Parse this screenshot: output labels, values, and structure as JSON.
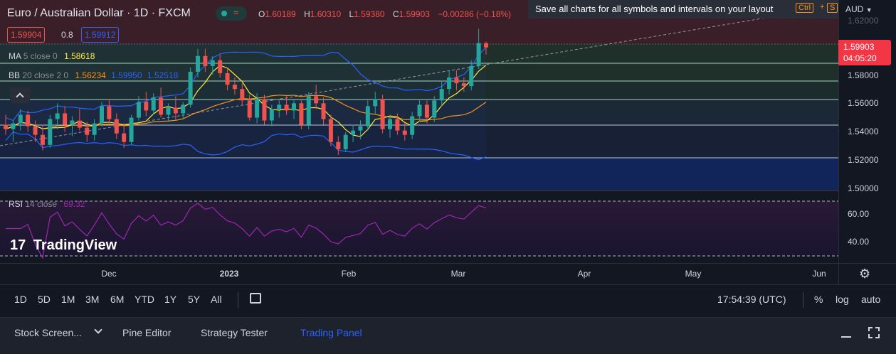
{
  "header": {
    "symbol_title": "Euro / Australian Dollar · 1D · FXCM",
    "ohlc": {
      "o_label": "O",
      "o": "1.60189",
      "h_label": "H",
      "h": "1.60310",
      "l_label": "L",
      "l": "1.59380",
      "c_label": "C",
      "c": "1.59903",
      "change": "−0.00286 (−0.18%)"
    },
    "bid": "1.59904",
    "spread": "0.8",
    "ask": "1.59912",
    "tooltip_text": "Save all charts for all symbols and intervals on your layout",
    "shortcut_ctrl": "Ctrl",
    "shortcut_plus": "+",
    "shortcut_s": "S",
    "currency": "AUD"
  },
  "indicators": {
    "ma": {
      "name": "MA",
      "params": "5 close 0",
      "value": "1.58618"
    },
    "bb": {
      "name": "BB",
      "params": "20 close 2 0",
      "basis": "1.56234",
      "upper": "1.59950",
      "lower": "1.52518"
    },
    "rsi": {
      "name": "RSI",
      "params": "14 close",
      "value": "69.32"
    }
  },
  "price_axis": {
    "ticks": [
      "1.62000",
      "1.58000",
      "1.56000",
      "1.54000",
      "1.52000",
      "1.50000"
    ],
    "current_price": "1.59903",
    "countdown": "04:05:20",
    "rsi_ticks": [
      "60.00",
      "40.00"
    ]
  },
  "time_axis": {
    "labels": [
      {
        "text": "Dec",
        "year": false
      },
      {
        "text": "2023",
        "year": true
      },
      {
        "text": "Feb",
        "year": false
      },
      {
        "text": "Mar",
        "year": false
      },
      {
        "text": "Apr",
        "year": false
      },
      {
        "text": "May",
        "year": false
      },
      {
        "text": "Jun",
        "year": false
      }
    ]
  },
  "range_bar": {
    "ranges": [
      "1D",
      "5D",
      "1M",
      "3M",
      "6M",
      "YTD",
      "1Y",
      "5Y",
      "All"
    ],
    "clock": "17:54:39 (UTC)",
    "percent": "%",
    "log": "log",
    "auto": "auto"
  },
  "bottom_tabs": {
    "stock_screener": "Stock Screen...",
    "pine_editor": "Pine Editor",
    "strategy_tester": "Strategy Tester",
    "trading_panel": "Trading Panel"
  },
  "watermark": "TradingView",
  "colors": {
    "up": "#26a69a",
    "down": "#ef5350",
    "ma": "#ffeb3b",
    "bb_basis": "#f7931a",
    "bb_band": "#2962ff",
    "rsi": "#9c27b0",
    "accent": "#2962ff"
  },
  "chart_data": {
    "type": "candlestick",
    "candles": [
      [
        1.545,
        1.552,
        1.538,
        1.542
      ],
      [
        1.542,
        1.548,
        1.533,
        1.546
      ],
      [
        1.546,
        1.556,
        1.541,
        1.552
      ],
      [
        1.552,
        1.555,
        1.54,
        1.544
      ],
      [
        1.544,
        1.548,
        1.533,
        1.538
      ],
      [
        1.538,
        1.545,
        1.527,
        1.531
      ],
      [
        1.531,
        1.552,
        1.529,
        1.549
      ],
      [
        1.549,
        1.56,
        1.542,
        1.553
      ],
      [
        1.553,
        1.558,
        1.54,
        1.545
      ],
      [
        1.545,
        1.551,
        1.537,
        1.548
      ],
      [
        1.548,
        1.556,
        1.541,
        1.543
      ],
      [
        1.543,
        1.547,
        1.533,
        1.538
      ],
      [
        1.538,
        1.549,
        1.534,
        1.546
      ],
      [
        1.546,
        1.561,
        1.544,
        1.558
      ],
      [
        1.558,
        1.563,
        1.546,
        1.549
      ],
      [
        1.549,
        1.553,
        1.535,
        1.539
      ],
      [
        1.539,
        1.546,
        1.529,
        1.533
      ],
      [
        1.533,
        1.552,
        1.531,
        1.55
      ],
      [
        1.55,
        1.565,
        1.548,
        1.561
      ],
      [
        1.561,
        1.568,
        1.551,
        1.555
      ],
      [
        1.555,
        1.567,
        1.552,
        1.564
      ],
      [
        1.564,
        1.571,
        1.55,
        1.552
      ],
      [
        1.552,
        1.56,
        1.547,
        1.557
      ],
      [
        1.557,
        1.565,
        1.548,
        1.553
      ],
      [
        1.553,
        1.561,
        1.549,
        1.559
      ],
      [
        1.559,
        1.585,
        1.557,
        1.582
      ],
      [
        1.582,
        1.598,
        1.578,
        1.593
      ],
      [
        1.593,
        1.598,
        1.582,
        1.586
      ],
      [
        1.586,
        1.593,
        1.58,
        1.59
      ],
      [
        1.59,
        1.594,
        1.578,
        1.581
      ],
      [
        1.581,
        1.585,
        1.569,
        1.573
      ],
      [
        1.573,
        1.578,
        1.566,
        1.57
      ],
      [
        1.57,
        1.574,
        1.559,
        1.562
      ],
      [
        1.562,
        1.566,
        1.548,
        1.55
      ],
      [
        1.55,
        1.567,
        1.546,
        1.563
      ],
      [
        1.563,
        1.566,
        1.545,
        1.548
      ],
      [
        1.548,
        1.559,
        1.544,
        1.556
      ],
      [
        1.556,
        1.562,
        1.55,
        1.559
      ],
      [
        1.559,
        1.565,
        1.552,
        1.555
      ],
      [
        1.555,
        1.562,
        1.549,
        1.56
      ],
      [
        1.56,
        1.562,
        1.542,
        1.545
      ],
      [
        1.545,
        1.568,
        1.542,
        1.565
      ],
      [
        1.565,
        1.573,
        1.556,
        1.56
      ],
      [
        1.56,
        1.564,
        1.545,
        1.549
      ],
      [
        1.549,
        1.552,
        1.53,
        1.533
      ],
      [
        1.533,
        1.537,
        1.524,
        1.528
      ],
      [
        1.528,
        1.54,
        1.526,
        1.538
      ],
      [
        1.538,
        1.545,
        1.533,
        1.541
      ],
      [
        1.541,
        1.548,
        1.535,
        1.544
      ],
      [
        1.544,
        1.562,
        1.541,
        1.558
      ],
      [
        1.558,
        1.568,
        1.552,
        1.563
      ],
      [
        1.563,
        1.566,
        1.539,
        1.542
      ],
      [
        1.542,
        1.552,
        1.536,
        1.549
      ],
      [
        1.549,
        1.553,
        1.538,
        1.541
      ],
      [
        1.541,
        1.546,
        1.534,
        1.538
      ],
      [
        1.538,
        1.554,
        1.535,
        1.551
      ],
      [
        1.551,
        1.563,
        1.547,
        1.559
      ],
      [
        1.559,
        1.562,
        1.546,
        1.55
      ],
      [
        1.55,
        1.565,
        1.547,
        1.562
      ],
      [
        1.562,
        1.575,
        1.558,
        1.57
      ],
      [
        1.57,
        1.583,
        1.566,
        1.578
      ],
      [
        1.578,
        1.583,
        1.569,
        1.574
      ],
      [
        1.574,
        1.578,
        1.568,
        1.572
      ],
      [
        1.572,
        1.59,
        1.569,
        1.586
      ],
      [
        1.586,
        1.612,
        1.584,
        1.602
      ],
      [
        1.602,
        1.603,
        1.594,
        1.599
      ]
    ],
    "x_labels": [
      "Dec",
      "2023",
      "Feb",
      "Mar",
      "Apr",
      "May",
      "Jun"
    ],
    "ylim": [
      1.495,
      1.625
    ],
    "rsi_ylim": [
      28,
      75
    ]
  }
}
